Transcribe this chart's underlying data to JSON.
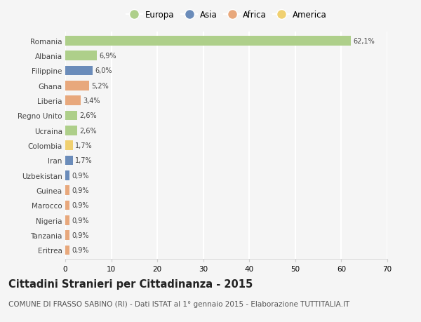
{
  "countries": [
    "Romania",
    "Albania",
    "Filippine",
    "Ghana",
    "Liberia",
    "Regno Unito",
    "Ucraina",
    "Colombia",
    "Iran",
    "Uzbekistan",
    "Guinea",
    "Marocco",
    "Nigeria",
    "Tanzania",
    "Eritrea"
  ],
  "values": [
    62.1,
    6.9,
    6.0,
    5.2,
    3.4,
    2.6,
    2.6,
    1.7,
    1.7,
    0.9,
    0.9,
    0.9,
    0.9,
    0.9,
    0.9
  ],
  "labels": [
    "62,1%",
    "6,9%",
    "6,0%",
    "5,2%",
    "3,4%",
    "2,6%",
    "2,6%",
    "1,7%",
    "1,7%",
    "0,9%",
    "0,9%",
    "0,9%",
    "0,9%",
    "0,9%",
    "0,9%"
  ],
  "continents": [
    "Europa",
    "Europa",
    "Asia",
    "Africa",
    "Africa",
    "Europa",
    "Europa",
    "America",
    "Asia",
    "Asia",
    "Africa",
    "Africa",
    "Africa",
    "Africa",
    "Africa"
  ],
  "continent_colors": {
    "Europa": "#aecf8a",
    "Asia": "#6b8cba",
    "Africa": "#e8a87c",
    "America": "#f0d070"
  },
  "legend_order": [
    "Europa",
    "Asia",
    "Africa",
    "America"
  ],
  "title": "Cittadini Stranieri per Cittadinanza - 2015",
  "subtitle": "COMUNE DI FRASSO SABINO (RI) - Dati ISTAT al 1° gennaio 2015 - Elaborazione TUTTITALIA.IT",
  "xlim": [
    0,
    70
  ],
  "xticks": [
    0,
    10,
    20,
    30,
    40,
    50,
    60,
    70
  ],
  "background_color": "#f5f5f5",
  "grid_color": "#ffffff",
  "title_fontsize": 10.5,
  "subtitle_fontsize": 7.5,
  "bar_height": 0.65
}
